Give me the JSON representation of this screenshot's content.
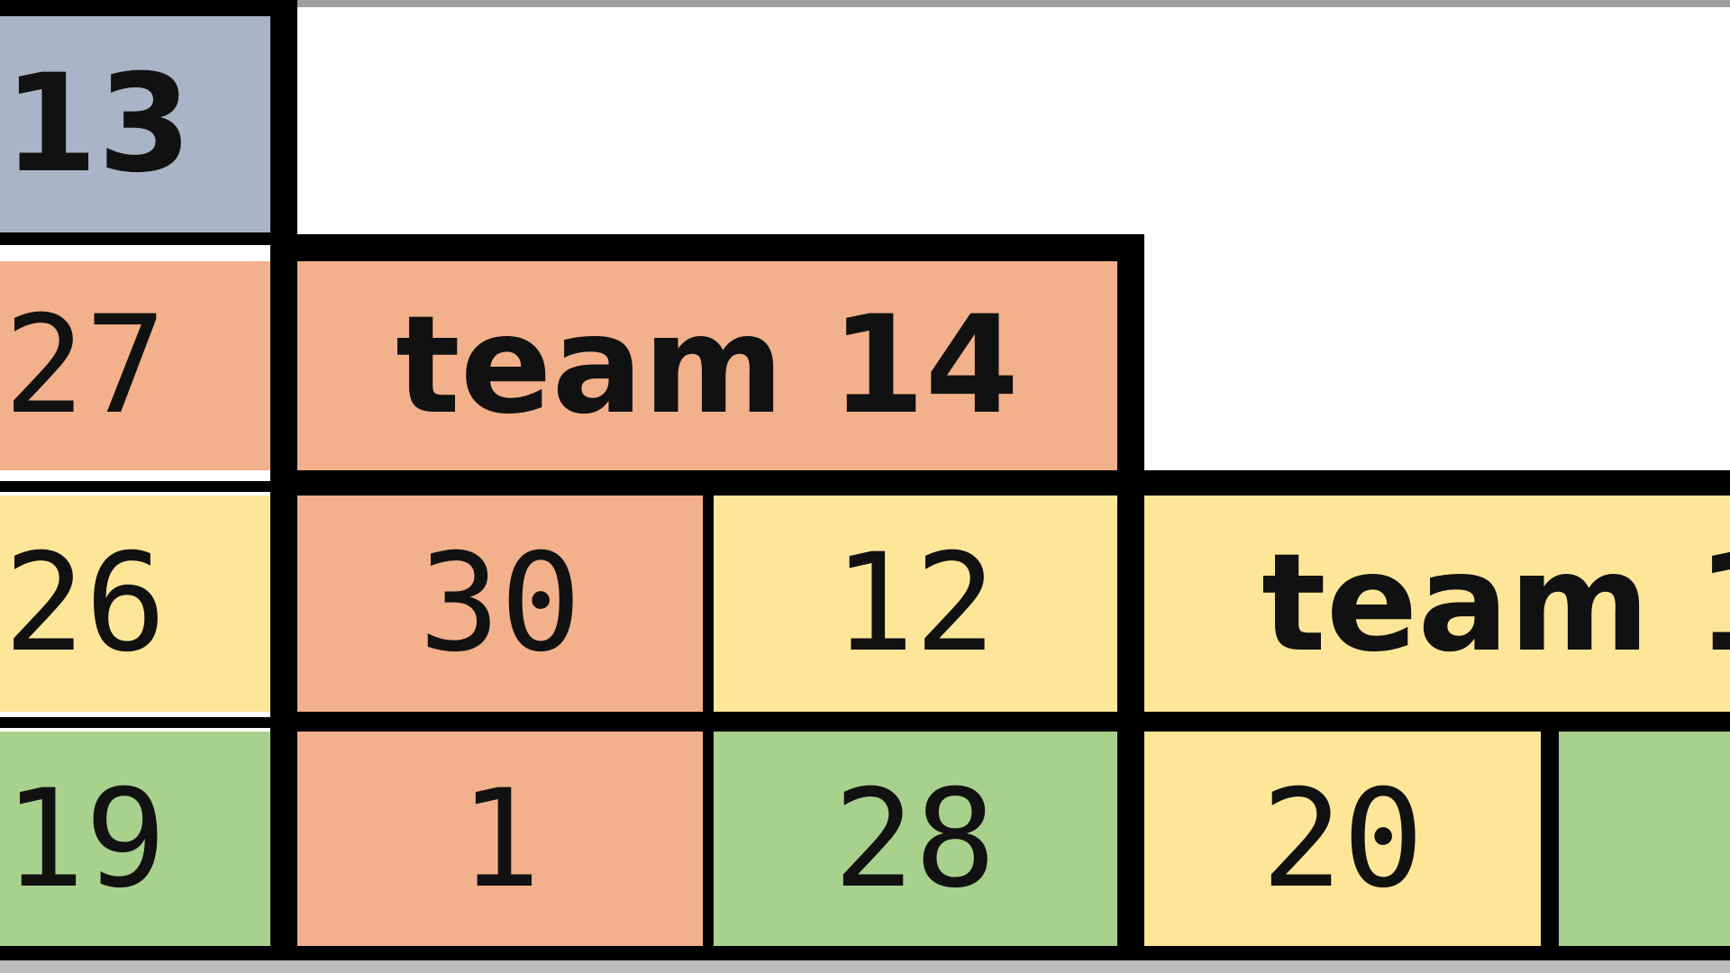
{
  "colors": {
    "slate": "#a9b4c6",
    "salmon": "#f3b18b",
    "yellow": "#fee699",
    "green": "#a9d18e",
    "border": "#000000"
  },
  "cells": {
    "r0c0": "13",
    "r1c0": "27",
    "team14_header": "team 14",
    "r2c0": "26",
    "r2c1": "30",
    "r2c2": "12",
    "team15_header_partial": "team 1",
    "r3c0": "19",
    "r3c1": "1",
    "r3c2": "28",
    "r3c3": "20"
  }
}
